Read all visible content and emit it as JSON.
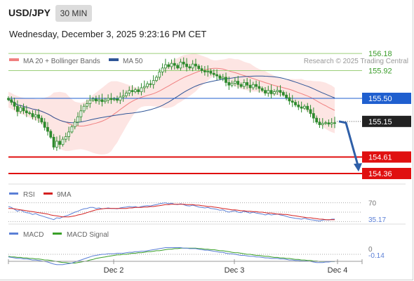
{
  "header": {
    "symbol": "USD/JPY",
    "timeframe": "30 MIN",
    "datetime": "Wednesday, December 3, 2025 9:23:16 PM CET"
  },
  "colors": {
    "candle": "#2e8b2e",
    "bollinger_fill": "#fde0de",
    "ma20": "#f08080",
    "ma50": "#2f5597",
    "resistance_line": "#9ccf7a",
    "resistance_label": "#3a9c2a",
    "pivot": "#1f5fcf",
    "support": "#e01010",
    "current_box": "#222222",
    "rsi": "#5b7fd6",
    "rsi_signal": "#d42020",
    "macd": "#5b7fd6",
    "macd_signal": "#3aa028",
    "forecast_arrow": "#2f5fa8"
  },
  "chart_data": [
    {
      "type": "candlestick",
      "legend": [
        {
          "name": "MA 20 + Bollinger Bands",
          "color": "#f08080"
        },
        {
          "name": "MA 50",
          "color": "#2f5597"
        }
      ],
      "watermark": "Research © 2025 Trading Central",
      "ylim": [
        154.2,
        156.32
      ],
      "x_ticks": [
        "Dec 2",
        "Dec 3",
        "Dec 4"
      ],
      "levels": [
        {
          "value": 156.18,
          "label": "156.18",
          "kind": "resistance"
        },
        {
          "value": 155.92,
          "label": "155.92",
          "kind": "resistance"
        },
        {
          "value": 155.5,
          "label": "155.50",
          "kind": "pivot"
        },
        {
          "value": 155.15,
          "label": "155.15",
          "kind": "current"
        },
        {
          "value": 154.61,
          "label": "154.61",
          "kind": "support"
        },
        {
          "value": 154.36,
          "label": "154.36",
          "kind": "support"
        }
      ],
      "forecast": {
        "from": 155.15,
        "to": 154.4
      },
      "close": [
        155.48,
        155.44,
        155.38,
        155.3,
        155.36,
        155.31,
        155.28,
        155.27,
        155.22,
        155.25,
        155.2,
        155.14,
        155.06,
        155.0,
        154.91,
        154.76,
        154.85,
        154.8,
        154.88,
        154.92,
        154.99,
        155.07,
        155.14,
        155.22,
        155.31,
        155.38,
        155.42,
        155.47,
        155.49,
        155.46,
        155.48,
        155.45,
        155.47,
        155.5,
        155.48,
        155.49,
        155.47,
        155.52,
        155.54,
        155.58,
        155.62,
        155.6,
        155.63,
        155.6,
        155.66,
        155.68,
        155.72,
        155.71,
        155.77,
        155.82,
        155.9,
        155.96,
        156.01,
        155.98,
        156.03,
        156.0,
        155.96,
        156.05,
        156.02,
        155.98,
        155.96,
        156.02,
        155.99,
        155.95,
        155.92,
        155.9,
        155.91,
        155.88,
        155.86,
        155.84,
        155.8,
        155.82,
        155.74,
        155.7,
        155.73,
        155.76,
        155.71,
        155.68,
        155.74,
        155.7,
        155.66,
        155.71,
        155.68,
        155.65,
        155.62,
        155.58,
        155.62,
        155.57,
        155.6,
        155.62,
        155.59,
        155.55,
        155.51,
        155.46,
        155.44,
        155.4,
        155.37,
        155.35,
        155.38,
        155.33,
        155.27,
        155.2,
        155.14,
        155.1,
        155.12,
        155.13,
        155.11,
        155.13,
        155.12
      ]
    },
    {
      "type": "line",
      "legend": [
        {
          "name": "RSI",
          "color": "#5b7fd6"
        },
        {
          "name": "9MA",
          "color": "#d42020"
        }
      ],
      "ylim": [
        20,
        80
      ],
      "reference_lines": [
        70,
        50,
        30
      ],
      "tick_labels": [
        "70",
        "35.17"
      ],
      "last_value": "35.17",
      "series": [
        {
          "name": "RSI",
          "values": [
            62,
            60,
            56,
            52,
            55,
            51,
            49,
            48,
            45,
            47,
            44,
            42,
            40,
            38,
            36,
            34,
            38,
            37,
            40,
            42,
            44,
            47,
            50,
            52,
            55,
            57,
            58,
            60,
            60,
            58,
            59,
            57,
            58,
            59,
            58,
            58,
            57,
            59,
            60,
            61,
            62,
            61,
            62,
            60,
            62,
            63,
            64,
            63,
            65,
            66,
            68,
            69,
            70,
            68,
            69,
            67,
            66,
            68,
            66,
            64,
            63,
            65,
            63,
            61,
            60,
            59,
            60,
            58,
            57,
            56,
            54,
            55,
            52,
            50,
            52,
            53,
            50,
            49,
            52,
            50,
            48,
            50,
            48,
            47,
            46,
            44,
            46,
            44,
            45,
            46,
            44,
            43,
            41,
            39,
            38,
            37,
            36,
            35,
            37,
            35,
            34,
            33,
            32,
            31,
            33,
            34,
            33,
            35,
            35.17
          ]
        },
        {
          "name": "9MA",
          "values": [
            58,
            58,
            57,
            56,
            55,
            54,
            53,
            52,
            51,
            50,
            49,
            48,
            47,
            46,
            44,
            43,
            42,
            41,
            40,
            40,
            40,
            41,
            42,
            44,
            45,
            47,
            49,
            51,
            53,
            55,
            56,
            57,
            58,
            58,
            58,
            58,
            58,
            58,
            58,
            58,
            59,
            59,
            60,
            60,
            60,
            61,
            61,
            62,
            62,
            63,
            64,
            65,
            66,
            66,
            67,
            67,
            67,
            67,
            67,
            66,
            66,
            66,
            65,
            65,
            64,
            63,
            62,
            62,
            61,
            60,
            59,
            58,
            57,
            56,
            55,
            55,
            54,
            53,
            53,
            52,
            52,
            51,
            51,
            50,
            50,
            49,
            48,
            48,
            47,
            46,
            46,
            45,
            45,
            44,
            43,
            42,
            41,
            40,
            39,
            38,
            38,
            37,
            36,
            35,
            35,
            34,
            34,
            34,
            34
          ]
        }
      ]
    },
    {
      "type": "line",
      "legend": [
        {
          "name": "MACD",
          "color": "#5b7fd6"
        },
        {
          "name": "MACD Signal",
          "color": "#3aa028"
        }
      ],
      "ylim": [
        -0.3,
        0.3
      ],
      "reference_lines": [
        0
      ],
      "tick_labels": [
        "0",
        "-0.14"
      ],
      "last_value": "-0.14",
      "series": [
        {
          "name": "MACD",
          "values": [
            -0.05,
            -0.06,
            -0.07,
            -0.08,
            -0.08,
            -0.09,
            -0.09,
            -0.1,
            -0.11,
            -0.11,
            -0.12,
            -0.13,
            -0.14,
            -0.15,
            -0.17,
            -0.19,
            -0.2,
            -0.2,
            -0.2,
            -0.19,
            -0.18,
            -0.17,
            -0.15,
            -0.13,
            -0.11,
            -0.09,
            -0.07,
            -0.05,
            -0.03,
            -0.02,
            -0.01,
            0.0,
            0.0,
            0.01,
            0.01,
            0.01,
            0.02,
            0.02,
            0.02,
            0.03,
            0.04,
            0.04,
            0.05,
            0.05,
            0.06,
            0.06,
            0.07,
            0.08,
            0.09,
            0.1,
            0.11,
            0.12,
            0.13,
            0.13,
            0.13,
            0.13,
            0.13,
            0.13,
            0.12,
            0.12,
            0.11,
            0.11,
            0.11,
            0.1,
            0.09,
            0.08,
            0.08,
            0.07,
            0.06,
            0.05,
            0.04,
            0.04,
            0.02,
            0.01,
            0.01,
            0.0,
            -0.01,
            -0.02,
            -0.02,
            -0.03,
            -0.04,
            -0.04,
            -0.05,
            -0.05,
            -0.06,
            -0.07,
            -0.07,
            -0.08,
            -0.08,
            -0.08,
            -0.09,
            -0.09,
            -0.1,
            -0.11,
            -0.11,
            -0.12,
            -0.12,
            -0.13,
            -0.13,
            -0.13,
            -0.14,
            -0.15,
            -0.16,
            -0.16,
            -0.16,
            -0.15,
            -0.15,
            -0.14,
            -0.14
          ]
        },
        {
          "name": "MACD Signal",
          "values": [
            -0.04,
            -0.05,
            -0.05,
            -0.06,
            -0.06,
            -0.07,
            -0.07,
            -0.08,
            -0.08,
            -0.09,
            -0.09,
            -0.1,
            -0.11,
            -0.11,
            -0.12,
            -0.13,
            -0.14,
            -0.15,
            -0.16,
            -0.16,
            -0.17,
            -0.17,
            -0.17,
            -0.16,
            -0.15,
            -0.14,
            -0.13,
            -0.11,
            -0.1,
            -0.08,
            -0.07,
            -0.06,
            -0.05,
            -0.04,
            -0.03,
            -0.02,
            -0.01,
            -0.01,
            0.0,
            0.0,
            0.01,
            0.02,
            0.02,
            0.03,
            0.03,
            0.04,
            0.05,
            0.05,
            0.06,
            0.07,
            0.07,
            0.08,
            0.09,
            0.1,
            0.1,
            0.11,
            0.11,
            0.12,
            0.12,
            0.12,
            0.12,
            0.12,
            0.12,
            0.11,
            0.11,
            0.1,
            0.1,
            0.09,
            0.09,
            0.08,
            0.07,
            0.07,
            0.06,
            0.05,
            0.04,
            0.03,
            0.03,
            0.02,
            0.01,
            0.0,
            0.0,
            -0.01,
            -0.02,
            -0.02,
            -0.03,
            -0.04,
            -0.04,
            -0.05,
            -0.06,
            -0.06,
            -0.07,
            -0.07,
            -0.08,
            -0.08,
            -0.09,
            -0.1,
            -0.1,
            -0.11,
            -0.11,
            -0.12,
            -0.12,
            -0.13,
            -0.13,
            -0.14,
            -0.14,
            -0.14,
            -0.14,
            -0.14,
            -0.14
          ]
        }
      ]
    }
  ]
}
